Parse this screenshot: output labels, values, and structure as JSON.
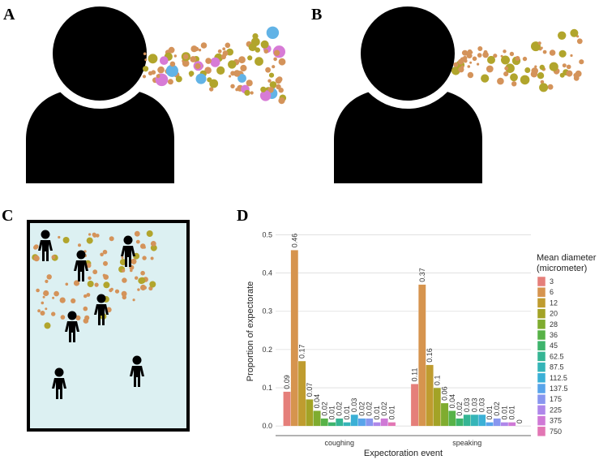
{
  "panels": [
    "A",
    "B",
    "C",
    "D"
  ],
  "chart_data": {
    "type": "bar",
    "categories": [
      "coughing",
      "speaking"
    ],
    "xlabel": "Expectoration event",
    "ylabel": "Proportion of expectorate",
    "legend_title": [
      "Mean diameter",
      "(micrometer)"
    ],
    "ylim": [
      -0.025,
      0.52
    ],
    "yticks": [
      {
        "value": 0,
        "label": "0.0"
      },
      0.1,
      0.2,
      0.3,
      0.4,
      0.5
    ],
    "grid": true,
    "series": [
      {
        "name": "3",
        "color": "#e57f7a",
        "values": [
          0.09,
          0.11
        ]
      },
      {
        "name": "6",
        "color": "#d6944e",
        "values": [
          0.46,
          0.37
        ]
      },
      {
        "name": "12",
        "color": "#bf9c2f",
        "values": [
          0.17,
          0.16
        ]
      },
      {
        "name": "20",
        "color": "#a3a326",
        "values": [
          0.07,
          0.1
        ]
      },
      {
        "name": "28",
        "color": "#7fac2f",
        "values": [
          0.04,
          0.06
        ]
      },
      {
        "name": "36",
        "color": "#57b247",
        "values": [
          0.02,
          0.04
        ]
      },
      {
        "name": "45",
        "color": "#3db46c",
        "values": [
          0.01,
          0.02
        ]
      },
      {
        "name": "62.5",
        "color": "#35b594",
        "values": [
          0.02,
          0.03
        ]
      },
      {
        "name": "87.5",
        "color": "#35b5b8",
        "values": [
          0.01,
          0.03
        ]
      },
      {
        "name": "112.5",
        "color": "#3bb0d6",
        "values": [
          0.03,
          0.03
        ]
      },
      {
        "name": "137.5",
        "color": "#58a4ea",
        "values": [
          0.02,
          0.01
        ]
      },
      {
        "name": "175",
        "color": "#8896ef",
        "values": [
          0.02,
          0.02
        ]
      },
      {
        "name": "225",
        "color": "#ae87ea",
        "values": [
          0.01,
          0.01
        ]
      },
      {
        "name": "375",
        "color": "#cf79d6",
        "values": [
          0.02,
          0.01
        ]
      },
      {
        "name": "750",
        "color": "#e276b4",
        "values": [
          0.01,
          0
        ]
      }
    ]
  }
}
